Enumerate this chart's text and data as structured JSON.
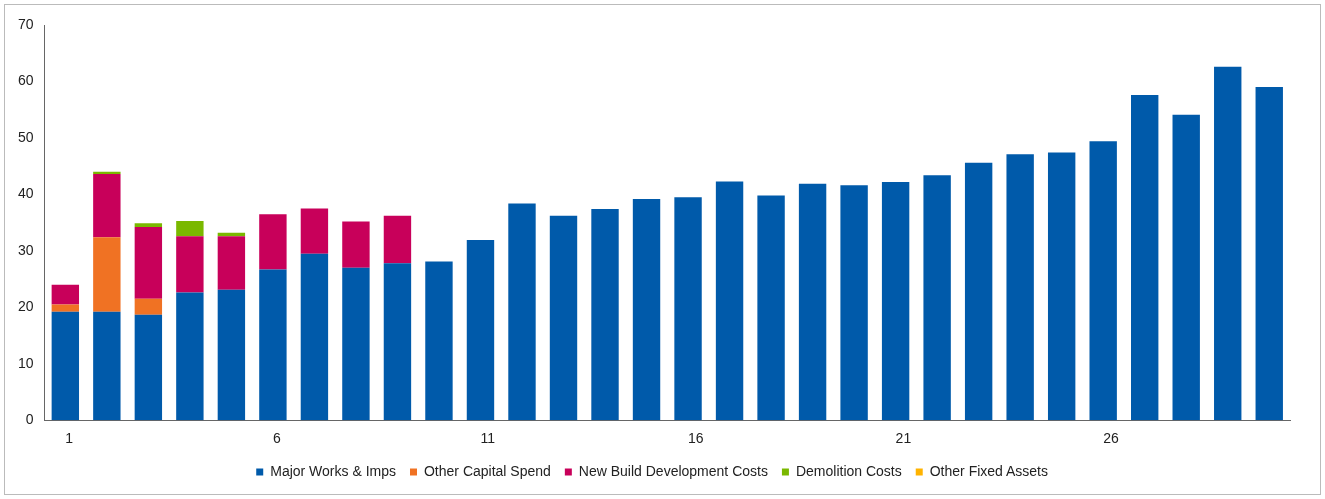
{
  "chart_data": {
    "type": "bar",
    "stacked": true,
    "legend": "bottom",
    "grid": false,
    "categories": [
      "1",
      null,
      null,
      null,
      null,
      "6",
      null,
      null,
      null,
      null,
      "11",
      null,
      null,
      null,
      null,
      "16",
      null,
      null,
      null,
      null,
      "21",
      null,
      null,
      null,
      null,
      "26",
      null,
      null,
      null,
      null
    ],
    "ylim": [
      0,
      70
    ],
    "yticks": [
      0,
      10,
      20,
      30,
      40,
      50,
      60,
      70
    ],
    "series": [
      {
        "name": "Major Works & Imps",
        "color": "#005aaa",
        "values": [
          19.2,
          19.2,
          18.7,
          22.6,
          23.1,
          26.7,
          29.5,
          27,
          27.8,
          28.1,
          31.9,
          38.4,
          36.2,
          37.4,
          39.2,
          39.5,
          42.3,
          39.8,
          41.9,
          41.6,
          42.2,
          43.4,
          45.6,
          47.1,
          47.4,
          49.4,
          57.6,
          54.1,
          62.6,
          59
        ]
      },
      {
        "name": "Other Capital Spend",
        "color": "#f07223",
        "values": [
          1.3,
          13.2,
          2.8,
          0,
          0,
          0,
          0,
          0,
          0,
          0,
          0,
          0,
          0,
          0,
          0,
          0,
          0,
          0,
          0,
          0,
          0,
          0,
          0,
          0,
          0,
          0,
          0,
          0,
          0,
          0
        ]
      },
      {
        "name": "New Build Development Costs",
        "color": "#c8005a",
        "values": [
          3.5,
          11.2,
          12.7,
          10,
          9.5,
          9.8,
          8,
          8.2,
          8.4,
          0,
          0,
          0,
          0,
          0,
          0,
          0,
          0,
          0,
          0,
          0,
          0,
          0,
          0,
          0,
          0,
          0,
          0,
          0,
          0,
          0
        ]
      },
      {
        "name": "Demolition Costs",
        "color": "#7ab800",
        "values": [
          0,
          0.4,
          0.7,
          2.7,
          0.6,
          0,
          0,
          0,
          0,
          0,
          0,
          0,
          0,
          0,
          0,
          0,
          0,
          0,
          0,
          0,
          0,
          0,
          0,
          0,
          0,
          0,
          0,
          0,
          0,
          0
        ]
      },
      {
        "name": "Other Fixed Assets",
        "color": "#ffb300",
        "values": [
          0,
          0,
          0,
          0,
          0,
          0,
          0,
          0,
          0,
          0,
          0,
          0,
          0,
          0,
          0,
          0,
          0,
          0,
          0,
          0,
          0,
          0,
          0,
          0,
          0,
          0,
          0,
          0,
          0,
          0
        ]
      }
    ]
  }
}
